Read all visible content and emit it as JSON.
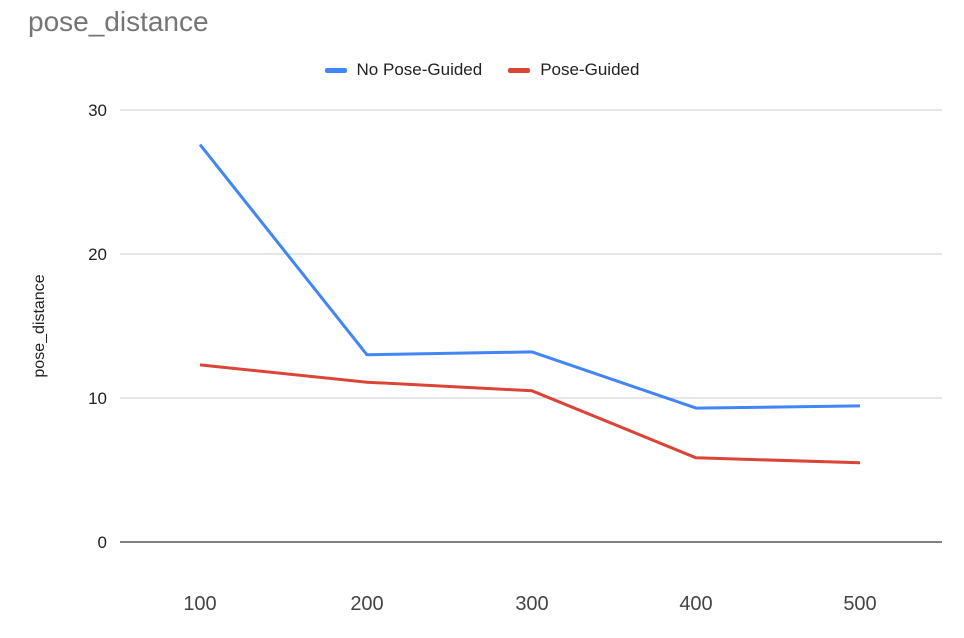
{
  "chart_data": {
    "type": "line",
    "title": "pose_distance",
    "ylabel": "pose_distance",
    "xlabel": "",
    "x": [
      100,
      200,
      300,
      400,
      500
    ],
    "series": [
      {
        "name": "No Pose-Guided",
        "color": "#4285f4",
        "values": [
          27.6,
          13.0,
          13.2,
          9.3,
          9.45
        ]
      },
      {
        "name": "Pose-Guided",
        "color": "#db4437",
        "values": [
          12.3,
          11.1,
          10.5,
          5.85,
          5.5
        ]
      }
    ],
    "ylim": [
      0,
      30
    ],
    "yticks": [
      0,
      10,
      20,
      30
    ],
    "grid": true,
    "legend_position": "top-center"
  }
}
